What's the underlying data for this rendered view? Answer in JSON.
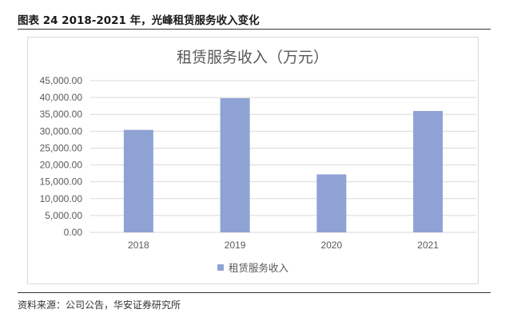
{
  "figure": {
    "caption": "图表 24 2018-2021 年，光峰租赁服务收入变化",
    "source": "资料来源：公司公告，华安证券研究所"
  },
  "chart_data": {
    "type": "bar",
    "title": "租赁服务收入（万元）",
    "categories": [
      "2018",
      "2019",
      "2020",
      "2021"
    ],
    "series": [
      {
        "name": "租赁服务收入",
        "values": [
          30400,
          39800,
          17200,
          36000
        ],
        "color": "#8fa2d4"
      }
    ],
    "ylim": [
      0,
      45000
    ],
    "yticks": [
      "0.00",
      "5,000.00",
      "10,000.00",
      "15,000.00",
      "20,000.00",
      "25,000.00",
      "30,000.00",
      "35,000.00",
      "40,000.00",
      "45,000.00"
    ],
    "ytick_values": [
      0,
      5000,
      10000,
      15000,
      20000,
      25000,
      30000,
      35000,
      40000,
      45000
    ],
    "grid": true,
    "legend": "bottom",
    "gridline_color": "#d9d9d9"
  }
}
